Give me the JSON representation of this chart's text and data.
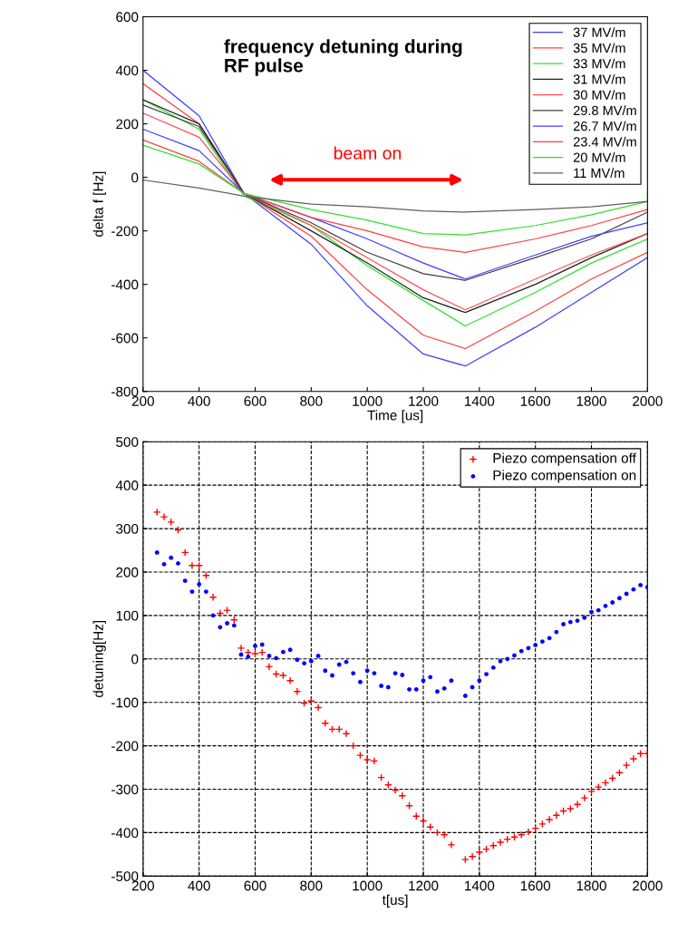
{
  "chart_data": [
    {
      "type": "line",
      "title": "frequency detuning during RF pulse",
      "xlabel": "Time [us]",
      "ylabel": "delta f [Hz]",
      "x": [
        200,
        400,
        560,
        800,
        1000,
        1200,
        1350,
        1600,
        1800,
        2000
      ],
      "xlim": [
        200,
        2000
      ],
      "ylim": [
        -800,
        600
      ],
      "xticks": [
        200,
        400,
        600,
        800,
        1000,
        1200,
        1400,
        1600,
        1800,
        2000
      ],
      "yticks": [
        -800,
        -600,
        -400,
        -200,
        0,
        200,
        400,
        600
      ],
      "legend": "top right",
      "grid": false,
      "marker": "none",
      "line_style": "solid",
      "annotations": [
        "beam on"
      ],
      "series": [
        {
          "name": "37 MV/m",
          "color": "#4040ff",
          "values": [
            400,
            230,
            -60,
            -250,
            -480,
            -660,
            -705,
            -560,
            -430,
            -300
          ]
        },
        {
          "name": "35 MV/m",
          "color": "#ff4040",
          "values": [
            350,
            200,
            -60,
            -220,
            -420,
            -590,
            -640,
            -500,
            -380,
            -280
          ]
        },
        {
          "name": "33 MV/m",
          "color": "#30e030",
          "values": [
            290,
            180,
            -70,
            -180,
            -330,
            -460,
            -555,
            -430,
            -320,
            -230
          ]
        },
        {
          "name": "31 MV/m",
          "color": "#202020",
          "values": [
            290,
            200,
            -60,
            -200,
            -320,
            -450,
            -505,
            -400,
            -300,
            -210
          ]
        },
        {
          "name": "30 MV/m",
          "color": "#ff5050",
          "values": [
            240,
            150,
            -60,
            -180,
            -300,
            -420,
            -495,
            -380,
            -290,
            -210
          ]
        },
        {
          "name": "29.8 MV/m",
          "color": "#404040",
          "values": [
            270,
            190,
            -60,
            -170,
            -280,
            -360,
            -385,
            -300,
            -230,
            -130
          ]
        },
        {
          "name": "26.7 MV/m",
          "color": "#4040ff",
          "values": [
            180,
            100,
            -60,
            -150,
            -230,
            -320,
            -380,
            -290,
            -220,
            -170
          ]
        },
        {
          "name": "23.4 MV/m",
          "color": "#ff4040",
          "values": [
            140,
            60,
            -60,
            -150,
            -200,
            -260,
            -280,
            -230,
            -180,
            -120
          ]
        },
        {
          "name": "20 MV/m",
          "color": "#30e030",
          "values": [
            120,
            50,
            -60,
            -120,
            -160,
            -210,
            -215,
            -180,
            -140,
            -90
          ]
        },
        {
          "name": "11 MV/m",
          "color": "#606060",
          "values": [
            -10,
            -40,
            -70,
            -100,
            -110,
            -125,
            -130,
            -120,
            -110,
            -90
          ]
        }
      ]
    },
    {
      "type": "scatter",
      "xlabel": "t[us]",
      "ylabel": "detuning[Hz]",
      "xlim": [
        200,
        2000
      ],
      "ylim": [
        -500,
        500
      ],
      "xticks": [
        200,
        400,
        600,
        800,
        1000,
        1200,
        1400,
        1600,
        1800,
        2000
      ],
      "yticks": [
        -500,
        -400,
        -300,
        -200,
        -100,
        0,
        100,
        200,
        300,
        400,
        500
      ],
      "legend": "top right",
      "grid": true,
      "series": [
        {
          "name": "Piezo compensation off",
          "color": "#ff0000",
          "marker": "cross",
          "x": [
            250,
            275,
            300,
            325,
            350,
            375,
            400,
            425,
            450,
            475,
            500,
            525,
            550,
            575,
            600,
            625,
            650,
            675,
            700,
            725,
            750,
            775,
            800,
            825,
            850,
            875,
            900,
            925,
            950,
            975,
            1000,
            1025,
            1050,
            1075,
            1100,
            1125,
            1150,
            1175,
            1200,
            1225,
            1250,
            1275,
            1300,
            1350,
            1375,
            1400,
            1425,
            1450,
            1475,
            1500,
            1525,
            1550,
            1575,
            1600,
            1625,
            1650,
            1675,
            1700,
            1725,
            1750,
            1775,
            1800,
            1825,
            1850,
            1875,
            1900,
            1925,
            1950,
            1975,
            2000
          ],
          "values": [
            338,
            327,
            315,
            297,
            245,
            215,
            215,
            192,
            142,
            105,
            112,
            90,
            25,
            15,
            12,
            15,
            -18,
            -35,
            -38,
            -50,
            -75,
            -102,
            -97,
            -112,
            -148,
            -162,
            -162,
            -172,
            -200,
            -222,
            -232,
            -235,
            -273,
            -290,
            -302,
            -315,
            -338,
            -362,
            -373,
            -387,
            -400,
            -405,
            -428,
            -462,
            -455,
            -445,
            -438,
            -430,
            -422,
            -415,
            -410,
            -405,
            -398,
            -390,
            -380,
            -370,
            -360,
            -350,
            -345,
            -335,
            -320,
            -305,
            -295,
            -285,
            -275,
            -262,
            -245,
            -230,
            -218,
            -218
          ]
        },
        {
          "name": "Piezo compensation on",
          "color": "#0000ff",
          "marker": "circle",
          "x": [
            250,
            275,
            300,
            325,
            350,
            375,
            400,
            425,
            450,
            475,
            500,
            525,
            550,
            575,
            600,
            625,
            650,
            675,
            700,
            725,
            750,
            775,
            800,
            825,
            850,
            875,
            900,
            925,
            950,
            975,
            1000,
            1025,
            1050,
            1075,
            1100,
            1125,
            1150,
            1175,
            1200,
            1225,
            1250,
            1275,
            1300,
            1350,
            1375,
            1400,
            1425,
            1450,
            1475,
            1500,
            1525,
            1550,
            1575,
            1600,
            1625,
            1650,
            1675,
            1700,
            1725,
            1750,
            1775,
            1800,
            1825,
            1850,
            1875,
            1900,
            1925,
            1950,
            1975,
            2000
          ],
          "values": [
            245,
            218,
            233,
            220,
            180,
            155,
            172,
            155,
            100,
            73,
            82,
            77,
            10,
            5,
            30,
            33,
            7,
            2,
            16,
            21,
            -2,
            -10,
            -5,
            7,
            -27,
            -38,
            -13,
            -7,
            -33,
            -53,
            -27,
            -33,
            -62,
            -65,
            -33,
            -37,
            -70,
            -70,
            -50,
            -42,
            -75,
            -68,
            -50,
            -85,
            -65,
            -50,
            -35,
            -20,
            -5,
            0,
            8,
            18,
            25,
            32,
            40,
            48,
            62,
            80,
            85,
            88,
            95,
            108,
            112,
            122,
            130,
            140,
            150,
            160,
            170,
            165
          ]
        }
      ]
    }
  ]
}
